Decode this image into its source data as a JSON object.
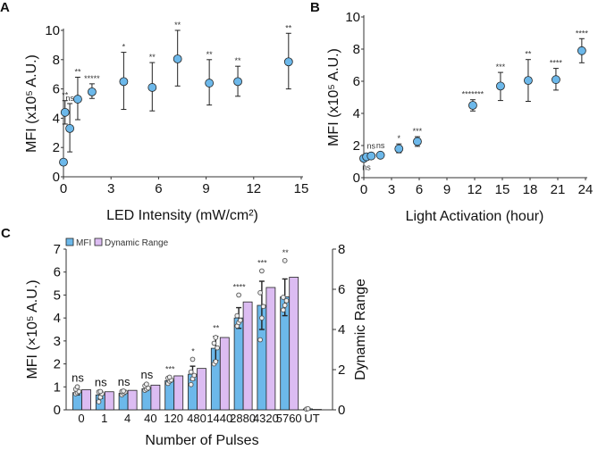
{
  "colors": {
    "point_fill": "#6cb8ea",
    "mfi_bar": "#6cb8ea",
    "dr_bar": "#dcbcf2",
    "axis": "#333333",
    "error": "#222222"
  },
  "chart_data": [
    {
      "panel": "A",
      "type": "scatter",
      "xlabel": "LED Intensity (mW/cm²)",
      "ylabel": "MFI (x10⁵ A.U.)",
      "xlim": [
        0,
        15
      ],
      "ylim": [
        0,
        10
      ],
      "xticks": [
        0,
        3,
        6,
        9,
        12,
        15
      ],
      "yticks": [
        0,
        2,
        4,
        6,
        8,
        10
      ],
      "points": [
        {
          "x": 0,
          "y": 1.0,
          "lo": null,
          "hi": null,
          "sig": ""
        },
        {
          "x": 0.1,
          "y": 4.4,
          "lo": 3.6,
          "hi": 5.2,
          "sig": "**"
        },
        {
          "x": 0.4,
          "y": 3.3,
          "lo": 1.7,
          "hi": 5.0,
          "sig": "ns"
        },
        {
          "x": 0.9,
          "y": 5.3,
          "lo": 3.9,
          "hi": 6.8,
          "sig": "**"
        },
        {
          "x": 1.8,
          "y": 5.8,
          "lo": 5.35,
          "hi": 6.35,
          "sig": "*****"
        },
        {
          "x": 3.8,
          "y": 6.5,
          "lo": 4.6,
          "hi": 8.5,
          "sig": "*"
        },
        {
          "x": 5.6,
          "y": 6.1,
          "lo": 4.5,
          "hi": 7.8,
          "sig": "**"
        },
        {
          "x": 7.2,
          "y": 8.05,
          "lo": 6.2,
          "hi": 10.0,
          "sig": "**"
        },
        {
          "x": 9.2,
          "y": 6.4,
          "lo": 4.9,
          "hi": 8.0,
          "sig": "**"
        },
        {
          "x": 11.0,
          "y": 6.5,
          "lo": 5.5,
          "hi": 7.55,
          "sig": "**"
        },
        {
          "x": 14.2,
          "y": 7.85,
          "lo": 6.0,
          "hi": 9.8,
          "sig": "**"
        }
      ]
    },
    {
      "panel": "B",
      "type": "scatter",
      "xlabel": "Light Activation (hour)",
      "ylabel": "MFI (x10⁵ A.U.)",
      "xlim": [
        0,
        24
      ],
      "ylim": [
        0,
        10
      ],
      "xticks": [
        0,
        3,
        6,
        9,
        12,
        15,
        18,
        21,
        24
      ],
      "yticks": [
        0,
        2,
        4,
        6,
        8,
        10
      ],
      "points": [
        {
          "x": 0,
          "y": 1.2,
          "lo": null,
          "hi": null,
          "sig": "ns",
          "sig_below": true
        },
        {
          "x": 0.3,
          "y": 1.3,
          "lo": null,
          "hi": null,
          "sig": ""
        },
        {
          "x": 0.8,
          "y": 1.35,
          "lo": null,
          "hi": null,
          "sig": "ns"
        },
        {
          "x": 1.8,
          "y": 1.4,
          "lo": null,
          "hi": null,
          "sig": "ns"
        },
        {
          "x": 3.8,
          "y": 1.8,
          "lo": 1.55,
          "hi": 2.1,
          "sig": "*"
        },
        {
          "x": 5.8,
          "y": 2.25,
          "lo": 1.95,
          "hi": 2.55,
          "sig": "***"
        },
        {
          "x": 11.8,
          "y": 4.5,
          "lo": 4.15,
          "hi": 4.85,
          "sig": "*******"
        },
        {
          "x": 14.8,
          "y": 5.7,
          "lo": 4.8,
          "hi": 6.55,
          "sig": "***"
        },
        {
          "x": 17.8,
          "y": 6.05,
          "lo": 4.75,
          "hi": 7.35,
          "sig": "**"
        },
        {
          "x": 20.8,
          "y": 6.1,
          "lo": 5.45,
          "hi": 6.8,
          "sig": "****"
        },
        {
          "x": 23.6,
          "y": 7.9,
          "lo": 7.15,
          "hi": 8.65,
          "sig": "****"
        }
      ]
    },
    {
      "panel": "C",
      "type": "bar",
      "xlabel": "Number of Pulses",
      "ylabel": "MFI (×10⁵  A.U.)",
      "y2label": "Dynamic Range",
      "ylim": [
        0,
        7
      ],
      "y2lim": [
        0,
        8
      ],
      "yticks": [
        0,
        1,
        2,
        3,
        4,
        5,
        6,
        7
      ],
      "y2ticks": [
        0,
        2,
        4,
        6,
        8
      ],
      "legend": {
        "position": "top-left",
        "entries": [
          "MFI",
          "Dynamic Range"
        ]
      },
      "categories": [
        "0",
        "1",
        "4",
        "40",
        "120",
        "480",
        "1440",
        "2880",
        "4320",
        "5760",
        "UT"
      ],
      "series": [
        {
          "name": "MFI",
          "axis": "left",
          "values": [
            0.75,
            0.65,
            0.72,
            0.92,
            1.27,
            1.55,
            2.68,
            4.0,
            4.55,
            4.92,
            0.04
          ],
          "err_lo": [
            0.65,
            0.5,
            0.68,
            0.85,
            1.2,
            1.3,
            2.15,
            3.55,
            3.5,
            4.1,
            0.0
          ],
          "err_hi": [
            0.85,
            0.8,
            0.78,
            1.0,
            1.35,
            1.9,
            3.2,
            4.45,
            5.6,
            5.7,
            0.06
          ],
          "replicates": [
            [
              0.7,
              0.75,
              0.8,
              0.9,
              1.0
            ],
            [
              0.35,
              0.55,
              0.7,
              0.78,
              0.8
            ],
            [
              0.65,
              0.72,
              0.78,
              0.8,
              0.82
            ],
            [
              0.85,
              0.9,
              0.95,
              1.05,
              1.12
            ],
            [
              1.15,
              1.25,
              1.3,
              1.38,
              1.42
            ],
            [
              1.1,
              1.35,
              1.5,
              1.65,
              2.2
            ],
            [
              2.0,
              2.1,
              2.7,
              2.9,
              3.15
            ],
            [
              3.65,
              3.8,
              3.9,
              4.1,
              5.0
            ],
            [
              3.05,
              4.0,
              4.5,
              5.1,
              6.05
            ],
            [
              4.35,
              4.55,
              4.75,
              4.9,
              6.5
            ],
            [
              0.03,
              0.05
            ]
          ]
        },
        {
          "name": "Dynamic Range",
          "axis": "right",
          "values": [
            1.0,
            0.9,
            0.97,
            1.23,
            1.69,
            2.06,
            3.6,
            5.37,
            6.09,
            6.6,
            0.02
          ]
        }
      ],
      "significance": [
        "ns",
        "ns",
        "ns",
        "ns",
        "***",
        "*",
        "**",
        "****",
        "***",
        "**",
        ""
      ]
    }
  ]
}
